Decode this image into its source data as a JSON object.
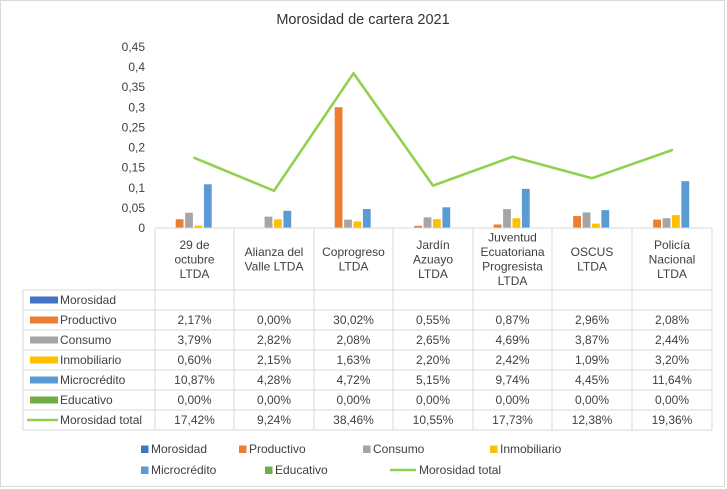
{
  "chart_data": {
    "type": "bar",
    "title": "Morosidad de cartera 2021",
    "ylim": [
      0,
      0.45
    ],
    "yticks": [
      "0",
      "0,05",
      "0,1",
      "0,15",
      "0,2",
      "0,25",
      "0,3",
      "0,35",
      "0,4",
      "0,45"
    ],
    "categories": [
      [
        "29 de",
        "octubre",
        "LTDA"
      ],
      [
        "Alianza del",
        "Valle LTDA"
      ],
      [
        "Coprogreso",
        "LTDA"
      ],
      [
        "Jardín",
        "Azuayo",
        "LTDA"
      ],
      [
        "Juventud",
        "Ecuatoriana",
        "Progresista",
        "LTDA"
      ],
      [
        "OSCUS",
        "LTDA"
      ],
      [
        "Policía",
        "Nacional",
        "LTDA"
      ]
    ],
    "series": [
      {
        "name": "Morosidad",
        "kind": "bar",
        "color": "#4472C4",
        "values": [
          null,
          null,
          null,
          null,
          null,
          null,
          null
        ],
        "labels": [
          "",
          "",
          "",
          "",
          "",
          "",
          ""
        ]
      },
      {
        "name": "Productivo",
        "kind": "bar",
        "color": "#ED7D31",
        "values": [
          0.0217,
          0.0,
          0.3002,
          0.0055,
          0.0087,
          0.0296,
          0.0208
        ],
        "labels": [
          "2,17%",
          "0,00%",
          "30,02%",
          "0,55%",
          "0,87%",
          "2,96%",
          "2,08%"
        ]
      },
      {
        "name": "Consumo",
        "kind": "bar",
        "color": "#A5A5A5",
        "values": [
          0.0379,
          0.0282,
          0.0208,
          0.0265,
          0.0469,
          0.0387,
          0.0244
        ],
        "labels": [
          "3,79%",
          "2,82%",
          "2,08%",
          "2,65%",
          "4,69%",
          "3,87%",
          "2,44%"
        ]
      },
      {
        "name": "Inmobiliario",
        "kind": "bar",
        "color": "#FFC000",
        "values": [
          0.006,
          0.0215,
          0.0163,
          0.022,
          0.0242,
          0.0109,
          0.032
        ],
        "labels": [
          "0,60%",
          "2,15%",
          "1,63%",
          "2,20%",
          "2,42%",
          "1,09%",
          "3,20%"
        ]
      },
      {
        "name": "Microcrédito",
        "kind": "bar",
        "color": "#5B9BD5",
        "values": [
          0.1087,
          0.0428,
          0.0472,
          0.0515,
          0.0974,
          0.0445,
          0.1164
        ],
        "labels": [
          "10,87%",
          "4,28%",
          "4,72%",
          "5,15%",
          "9,74%",
          "4,45%",
          "11,64%"
        ]
      },
      {
        "name": "Educativo",
        "kind": "bar",
        "color": "#70AD47",
        "values": [
          0.0,
          0.0,
          0.0,
          0.0,
          0.0,
          0.0,
          0.0
        ],
        "labels": [
          "0,00%",
          "0,00%",
          "0,00%",
          "0,00%",
          "0,00%",
          "0,00%",
          "0,00%"
        ]
      },
      {
        "name": "Morosidad total",
        "kind": "line",
        "color": "#92D050",
        "values": [
          0.1742,
          0.0924,
          0.3846,
          0.1055,
          0.1773,
          0.1238,
          0.1936
        ],
        "labels": [
          "17,42%",
          "9,24%",
          "38,46%",
          "10,55%",
          "17,73%",
          "12,38%",
          "19,36%"
        ]
      }
    ],
    "table_labels": [
      "Morosidad",
      "Productivo",
      "Consumo",
      "Inmobiliario",
      "Microcrédito",
      " Educativo",
      "Morosidad total"
    ],
    "legend": {
      "position": "bottom",
      "row1": [
        "Morosidad",
        "Productivo",
        "Consumo",
        "Inmobiliario"
      ],
      "row2": [
        "Microcrédito",
        "Educativo",
        "Morosidad total"
      ]
    }
  }
}
